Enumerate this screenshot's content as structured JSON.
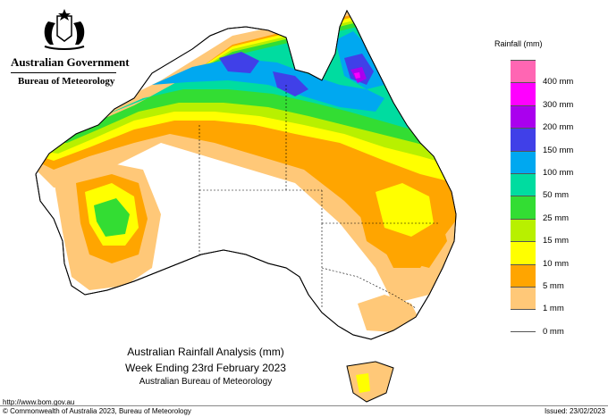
{
  "header": {
    "gov": "Australian Government",
    "bom": "Bureau of Meteorology"
  },
  "legend": {
    "title": "Rainfall (mm)",
    "items": [
      {
        "color": "#ff66b3",
        "label": ""
      },
      {
        "color": "#ff00ff",
        "label": "400 mm"
      },
      {
        "color": "#aa00ee",
        "label": "300 mm"
      },
      {
        "color": "#4040e8",
        "label": "200 mm"
      },
      {
        "color": "#00a8f0",
        "label": "150 mm"
      },
      {
        "color": "#00dca0",
        "label": "100 mm"
      },
      {
        "color": "#33dd33",
        "label": "50 mm"
      },
      {
        "color": "#b8f000",
        "label": "25 mm"
      },
      {
        "color": "#ffff00",
        "label": "15 mm"
      },
      {
        "color": "#ffa500",
        "label": "10 mm"
      },
      {
        "color": "#ffc878",
        "label": "5 mm"
      },
      {
        "color": "#ffffff",
        "label": "1 mm"
      },
      {
        "color": "",
        "label": "0 mm"
      }
    ]
  },
  "caption": {
    "line1": "Australian Rainfall Analysis (mm)",
    "line2": "Week Ending 23rd February 2023",
    "line3": "Australian Bureau of Meteorology"
  },
  "footer": {
    "url": "http://www.bom.gov.au",
    "copyright": "© Commonwealth of Australia 2023, Bureau of Meteorology",
    "issued": "Issued: 23/02/2023"
  }
}
